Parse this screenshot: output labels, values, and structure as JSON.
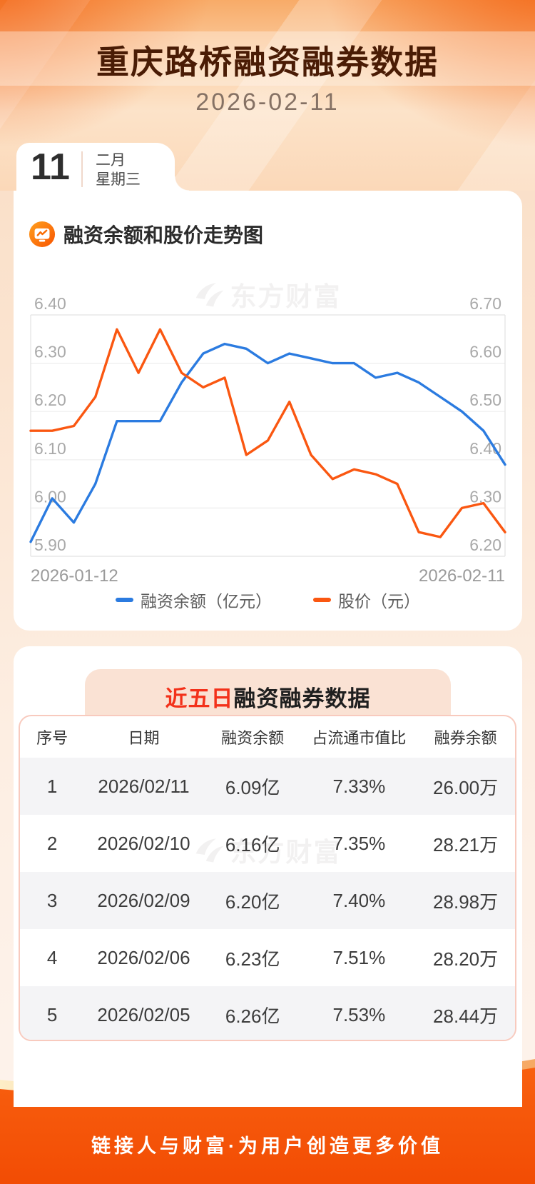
{
  "page": {
    "header": {
      "title": "重庆路桥融资融券数据",
      "date": "2026-02-11"
    },
    "calendar": {
      "day": "11",
      "month": "二月",
      "weekday": "星期三"
    },
    "chart_section": {
      "title": "融资余额和股价走势图",
      "watermark": "东方财富",
      "legend": [
        {
          "label": "融资余额（亿元）",
          "color": "#2b7be0"
        },
        {
          "label": "股价（元）",
          "color": "#fa5711"
        }
      ]
    },
    "table_section": {
      "title_highlight": "近五日",
      "title_rest": "融资融券数据",
      "watermark": "东方财富",
      "columns": [
        "序号",
        "日期",
        "融资余额",
        "占流通市值比",
        "融券余额"
      ],
      "rows": [
        [
          "1",
          "2026/02/11",
          "6.09亿",
          "7.33%",
          "26.00万"
        ],
        [
          "2",
          "2026/02/10",
          "6.16亿",
          "7.35%",
          "28.21万"
        ],
        [
          "3",
          "2026/02/09",
          "6.20亿",
          "7.40%",
          "28.98万"
        ],
        [
          "4",
          "2026/02/06",
          "6.23亿",
          "7.51%",
          "28.20万"
        ],
        [
          "5",
          "2026/02/05",
          "6.26亿",
          "7.53%",
          "28.44万"
        ]
      ]
    },
    "footer": {
      "slogan": "链接人与财富·为用户创造更多价值"
    },
    "colors": {
      "accent_orange": "#f4570b",
      "title_brown": "#4a1c05",
      "highlight_red": "#f3311a",
      "line_blue": "#2b7be0",
      "line_orange": "#fa5711"
    }
  },
  "chart_data": [
    {
      "type": "line",
      "title": "融资余额和股价走势图",
      "x_start_label": "2026-01-12",
      "x_end_label": "2026-02-11",
      "grid": true,
      "legend_position": "bottom",
      "left_axis": {
        "name": "融资余额（亿元）",
        "min": 5.9,
        "max": 6.4,
        "ticks": [
          "6.40",
          "6.30",
          "6.20",
          "6.10",
          "6.00",
          "5.90"
        ]
      },
      "right_axis": {
        "name": "股价（元）",
        "min": 6.2,
        "max": 6.7,
        "ticks": [
          "6.70",
          "6.60",
          "6.50",
          "6.40",
          "6.30",
          "6.20"
        ]
      },
      "series": [
        {
          "name": "融资余额（亿元）",
          "axis": "left",
          "color": "#2b7be0",
          "values": [
            5.93,
            6.02,
            5.97,
            6.05,
            6.18,
            6.18,
            6.18,
            6.26,
            6.32,
            6.34,
            6.33,
            6.3,
            6.32,
            6.31,
            6.3,
            6.3,
            6.27,
            6.28,
            6.26,
            6.23,
            6.2,
            6.16,
            6.09
          ]
        },
        {
          "name": "股价（元）",
          "axis": "right",
          "color": "#fa5711",
          "values": [
            6.46,
            6.46,
            6.47,
            6.53,
            6.67,
            6.58,
            6.67,
            6.58,
            6.55,
            6.57,
            6.41,
            6.44,
            6.52,
            6.41,
            6.36,
            6.38,
            6.37,
            6.35,
            6.25,
            6.24,
            6.3,
            6.31,
            6.25
          ]
        }
      ]
    },
    {
      "type": "table",
      "title": "近五日融资融券数据",
      "columns": [
        "序号",
        "日期",
        "融资余额",
        "占流通市值比",
        "融券余额"
      ],
      "rows": [
        [
          "1",
          "2026/02/11",
          "6.09亿",
          "7.33%",
          "26.00万"
        ],
        [
          "2",
          "2026/02/10",
          "6.16亿",
          "7.35%",
          "28.21万"
        ],
        [
          "3",
          "2026/02/09",
          "6.20亿",
          "7.40%",
          "28.98万"
        ],
        [
          "4",
          "2026/02/06",
          "6.23亿",
          "7.51%",
          "28.20万"
        ],
        [
          "5",
          "2026/02/05",
          "6.26亿",
          "7.53%",
          "28.44万"
        ]
      ]
    }
  ]
}
